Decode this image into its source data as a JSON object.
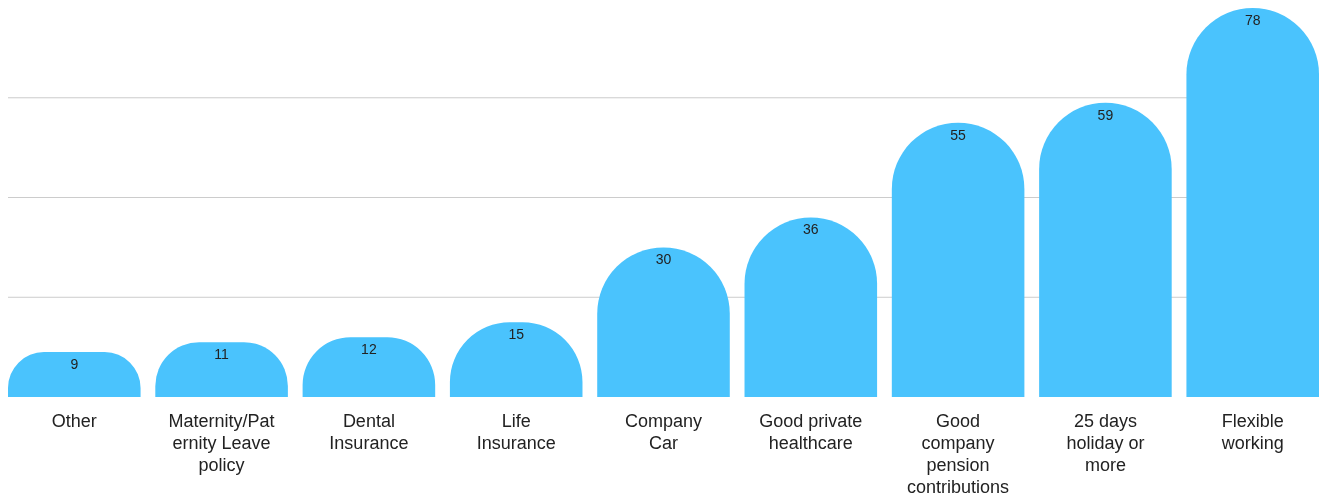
{
  "chart_data": {
    "type": "bar",
    "categories": [
      "Other",
      "Maternity/Paternity Leave policy",
      "Dental Insurance",
      "Life Insurance",
      "Company Car",
      "Good private healthcare",
      "Good company pension contributions",
      "25 days holiday or more",
      "Flexible working"
    ],
    "values": [
      9,
      11,
      12,
      15,
      30,
      36,
      55,
      59,
      78
    ],
    "color": "#4ac3fd",
    "yticks": [
      {
        "value": 20,
        "label": null
      },
      {
        "value": 40,
        "label": null
      },
      {
        "value": 60,
        "label": null
      }
    ],
    "grid": "y",
    "tick_labels": "x",
    "data_labels": true
  }
}
